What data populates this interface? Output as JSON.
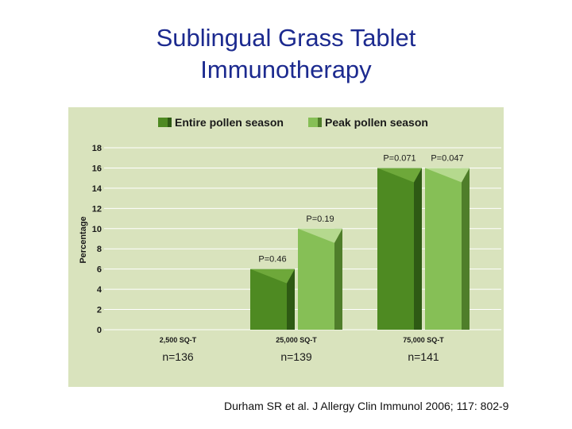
{
  "slide": {
    "title_line1": "Sublingual Grass Tablet",
    "title_line2": "Immunotherapy",
    "citation": "Durham SR et al. J Allergy Clin Immunol 2006; 117: 802-9"
  },
  "colors": {
    "title": "#1c2a8f",
    "panel_bg": "#d9e3bd",
    "entire_front": "#4e8a22",
    "entire_side": "#2e5a14",
    "entire_top": "#6ea83a",
    "peak_front": "#86bf56",
    "peak_side": "#4f7e2a",
    "peak_top": "#b5d98e"
  },
  "chart_data": {
    "type": "bar",
    "categories": [
      "2,500 SQ-T",
      "25,000 SQ-T",
      "75,000 SQ-T"
    ],
    "sample_sizes": [
      "n=136",
      "n=139",
      "n=141"
    ],
    "series": [
      {
        "name": "Entire pollen season",
        "values": [
          0,
          6,
          16
        ]
      },
      {
        "name": "Peak pollen season",
        "values": [
          0,
          10,
          16
        ]
      }
    ],
    "p_values": [
      [
        "",
        ""
      ],
      [
        "P=0.46",
        "P=0.19"
      ],
      [
        "P=0.071",
        "P=0.047"
      ]
    ],
    "ylabel": "Percentage",
    "ylim": [
      0,
      18
    ],
    "yticks": [
      "0",
      "2",
      "4",
      "6",
      "8",
      "10",
      "12",
      "14",
      "16",
      "18"
    ],
    "grid": true,
    "legend_position": "top"
  }
}
